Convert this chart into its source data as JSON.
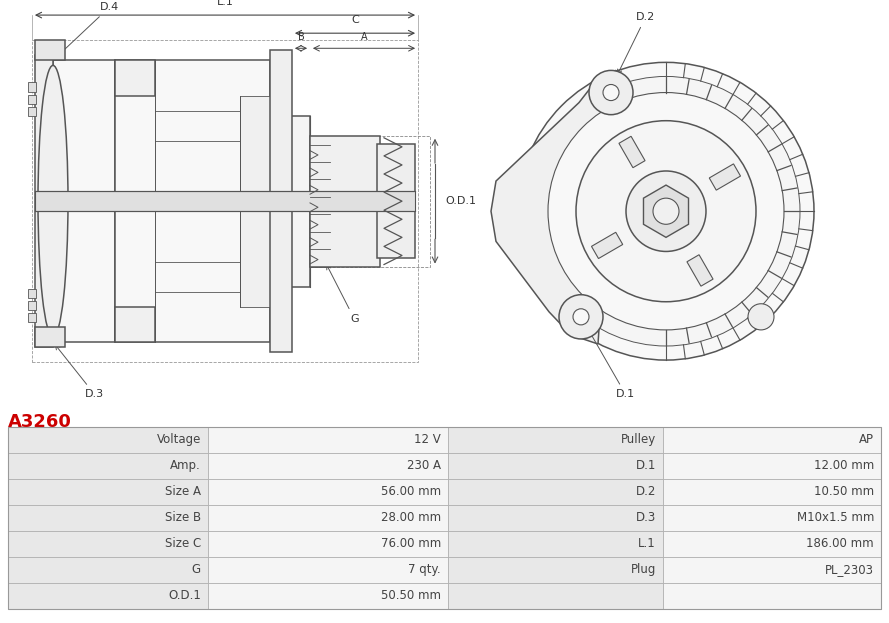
{
  "title": "A3260",
  "title_color": "#cc0000",
  "bg_color": "#ffffff",
  "table_rows": [
    [
      "Voltage",
      "12 V",
      "Pulley",
      "AP"
    ],
    [
      "Amp.",
      "230 A",
      "D.1",
      "12.00 mm"
    ],
    [
      "Size A",
      "56.00 mm",
      "D.2",
      "10.50 mm"
    ],
    [
      "Size B",
      "28.00 mm",
      "D.3",
      "M10x1.5 mm"
    ],
    [
      "Size C",
      "76.00 mm",
      "L.1",
      "186.00 mm"
    ],
    [
      "G",
      "7 qty.",
      "Plug",
      "PL_2303"
    ],
    [
      "O.D.1",
      "50.50 mm",
      "",
      ""
    ]
  ],
  "label_bg": "#e8e8e8",
  "value_bg": "#f5f5f5",
  "line_color": "#aaaaaa",
  "text_color": "#444444",
  "font_size": 8.5,
  "diagram_bg": "#ffffff"
}
